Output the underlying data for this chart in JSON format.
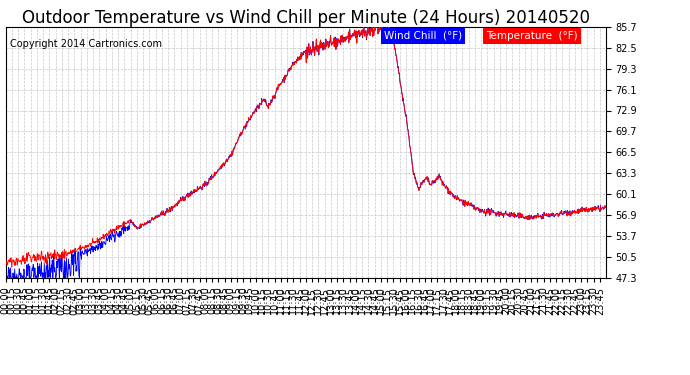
{
  "title": "Outdoor Temperature vs Wind Chill per Minute (24 Hours) 20140520",
  "copyright": "Copyright 2014 Cartronics.com",
  "y_min": 47.3,
  "y_max": 85.7,
  "y_ticks": [
    47.3,
    50.5,
    53.7,
    56.9,
    60.1,
    63.3,
    66.5,
    69.7,
    72.9,
    76.1,
    79.3,
    82.5,
    85.7
  ],
  "background_color": "#ffffff",
  "plot_bg_color": "#ffffff",
  "grid_color": "#c8c8c8",
  "line_color_temp": "#ff0000",
  "line_color_wind": "#0000ff",
  "legend_wind_bg": "#0000ff",
  "legend_temp_bg": "#ff0000",
  "legend_wind_label": "Wind Chill  (°F)",
  "legend_temp_label": "Temperature  (°F)",
  "title_fontsize": 12,
  "tick_fontsize": 7,
  "copyright_fontsize": 7
}
